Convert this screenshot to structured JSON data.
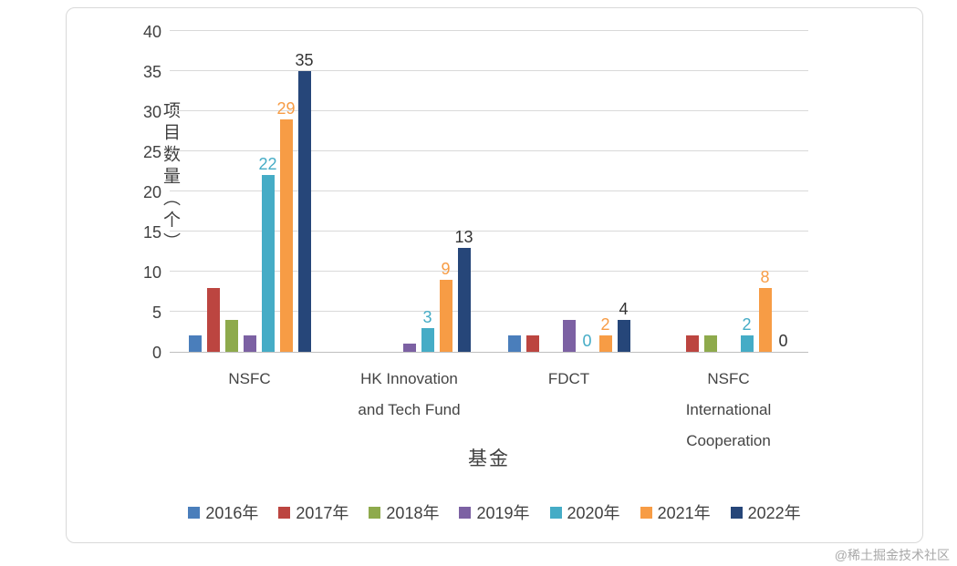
{
  "watermark": "@稀土掘金技术社区",
  "chart_data": {
    "type": "bar",
    "title": "",
    "xlabel": "基金",
    "ylabel": "项目数量（个）",
    "ylim": [
      0,
      40
    ],
    "ytick_step": 5,
    "grid": true,
    "legend_position": "bottom",
    "categories": [
      "NSFC",
      "HK Innovation|and Tech Fund",
      "FDCT",
      "NSFC|International|Cooperation"
    ],
    "series": [
      {
        "name": "2016年",
        "color": "#4a7ebb",
        "values": [
          2,
          0,
          2,
          0
        ],
        "show_labels": false,
        "label_color": "#4a7ebb"
      },
      {
        "name": "2017年",
        "color": "#bc4540",
        "values": [
          8,
          0,
          2,
          2
        ],
        "show_labels": false,
        "label_color": "#bc4540"
      },
      {
        "name": "2018年",
        "color": "#8eaa4c",
        "values": [
          4,
          0,
          0,
          2
        ],
        "show_labels": false,
        "label_color": "#8eaa4c"
      },
      {
        "name": "2019年",
        "color": "#7c61a3",
        "values": [
          2,
          1,
          4,
          0
        ],
        "show_labels": false,
        "label_color": "#7c61a3"
      },
      {
        "name": "2020年",
        "color": "#45acc6",
        "values": [
          22,
          3,
          0,
          2
        ],
        "show_labels": true,
        "label_color": "#45acc6"
      },
      {
        "name": "2021年",
        "color": "#f79c45",
        "values": [
          29,
          9,
          2,
          8
        ],
        "show_labels": true,
        "label_color": "#f79c45"
      },
      {
        "name": "2022年",
        "color": "#264679",
        "values": [
          35,
          13,
          4,
          0
        ],
        "show_labels": true,
        "label_color": "#333333"
      }
    ]
  }
}
